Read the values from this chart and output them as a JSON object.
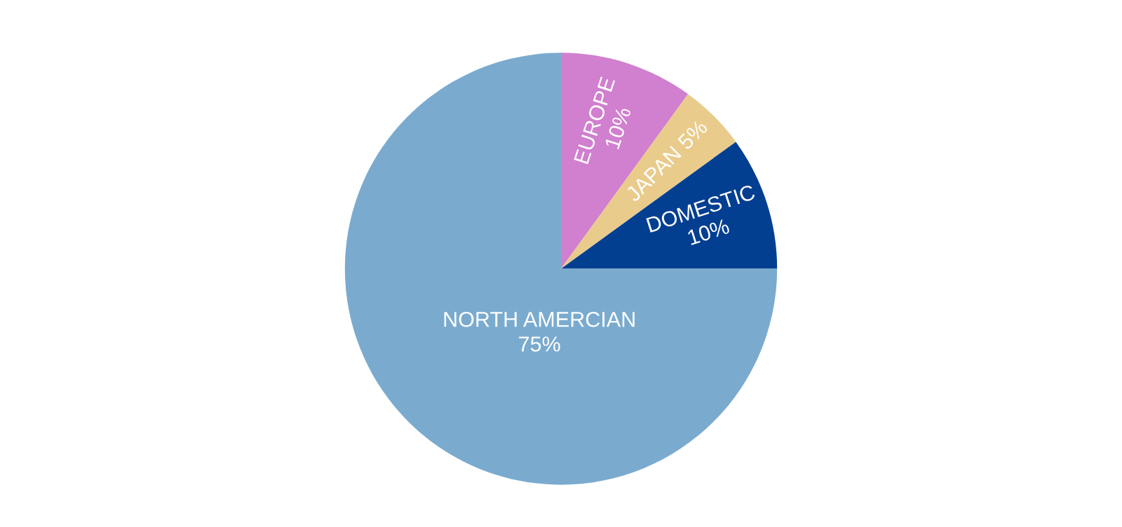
{
  "chart_data": {
    "type": "pie",
    "categories": [
      "EUROPE",
      "JAPAN",
      "DOMESTIC",
      "NORTH AMERCIAN"
    ],
    "values": [
      10,
      5,
      10,
      75
    ],
    "colors": [
      "#d17fcf",
      "#e9cb8b",
      "#033f91",
      "#7aabcf"
    ],
    "value_labels": [
      "10%",
      "5%",
      "10%",
      "75%"
    ],
    "legend": false
  }
}
